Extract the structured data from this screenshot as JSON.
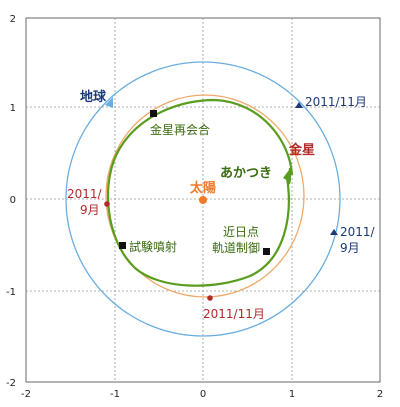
{
  "colors": {
    "earth_orbit": "#6aaee0",
    "venus_orbit": "#f0a868",
    "akatsuki": "#5a9c1e",
    "sun": "#f07a2a",
    "venus_label": "#b22a2a",
    "earth_label": "#1a3a78",
    "grid": "#999999",
    "marker": "#111111"
  },
  "axes": {
    "x_ticks": [
      "-2",
      "-1",
      "0",
      "1",
      "2"
    ],
    "y_ticks": [
      "2",
      "1",
      "0",
      "-1",
      "-2"
    ],
    "xlim": [
      -2,
      2
    ],
    "ylim": [
      -2,
      2
    ],
    "grid": "dashed"
  },
  "labels": {
    "earth": "地球",
    "venus": "金星",
    "sun": "太陽",
    "akatsuki": "あかつき",
    "venus_reunion": "金星再会合",
    "test_burn": "試験噴射",
    "perihelion_line1": "近日点",
    "perihelion_line2": "軌道制御",
    "earth_nov": "2011/11月",
    "earth_sep_line1": "2011/",
    "earth_sep_line2": "9月",
    "venus_sep_line1": "2011/",
    "venus_sep_line2": "9月",
    "venus_nov": "2011/11月"
  },
  "icons": {
    "earth_marker": "triangle-icon",
    "venus_marker": "dot-icon",
    "event_marker": "square-icon"
  }
}
